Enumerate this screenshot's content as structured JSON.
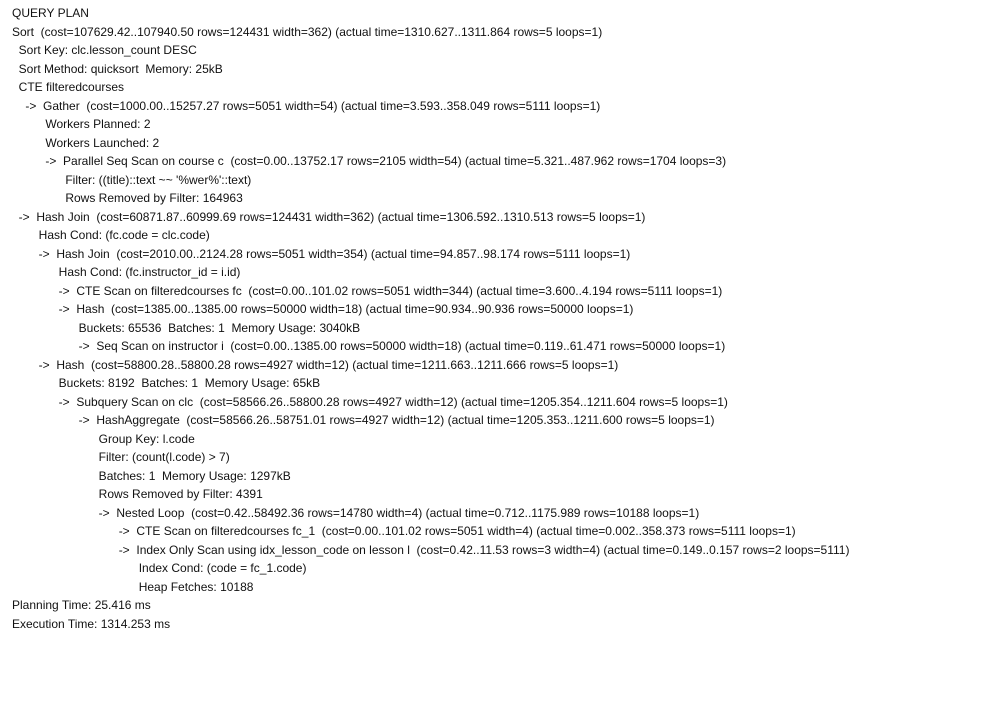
{
  "result": {
    "header": "QUERY PLAN",
    "lines": [
      "Sort  (cost=107629.42..107940.50 rows=124431 width=362) (actual time=1310.627..1311.864 rows=5 loops=1)",
      "  Sort Key: clc.lesson_count DESC",
      "  Sort Method: quicksort  Memory: 25kB",
      "  CTE filteredcourses",
      "    ->  Gather  (cost=1000.00..15257.27 rows=5051 width=54) (actual time=3.593..358.049 rows=5111 loops=1)",
      "          Workers Planned: 2",
      "          Workers Launched: 2",
      "          ->  Parallel Seq Scan on course c  (cost=0.00..13752.17 rows=2105 width=54) (actual time=5.321..487.962 rows=1704 loops=3)",
      "                Filter: ((title)::text ~~ '%wer%'::text)",
      "                Rows Removed by Filter: 164963",
      "  ->  Hash Join  (cost=60871.87..60999.69 rows=124431 width=362) (actual time=1306.592..1310.513 rows=5 loops=1)",
      "        Hash Cond: (fc.code = clc.code)",
      "        ->  Hash Join  (cost=2010.00..2124.28 rows=5051 width=354) (actual time=94.857..98.174 rows=5111 loops=1)",
      "              Hash Cond: (fc.instructor_id = i.id)",
      "              ->  CTE Scan on filteredcourses fc  (cost=0.00..101.02 rows=5051 width=344) (actual time=3.600..4.194 rows=5111 loops=1)",
      "              ->  Hash  (cost=1385.00..1385.00 rows=50000 width=18) (actual time=90.934..90.936 rows=50000 loops=1)",
      "                    Buckets: 65536  Batches: 1  Memory Usage: 3040kB",
      "                    ->  Seq Scan on instructor i  (cost=0.00..1385.00 rows=50000 width=18) (actual time=0.119..61.471 rows=50000 loops=1)",
      "        ->  Hash  (cost=58800.28..58800.28 rows=4927 width=12) (actual time=1211.663..1211.666 rows=5 loops=1)",
      "              Buckets: 8192  Batches: 1  Memory Usage: 65kB",
      "              ->  Subquery Scan on clc  (cost=58566.26..58800.28 rows=4927 width=12) (actual time=1205.354..1211.604 rows=5 loops=1)",
      "                    ->  HashAggregate  (cost=58566.26..58751.01 rows=4927 width=12) (actual time=1205.353..1211.600 rows=5 loops=1)",
      "                          Group Key: l.code",
      "                          Filter: (count(l.code) > 7)",
      "                          Batches: 1  Memory Usage: 1297kB",
      "                          Rows Removed by Filter: 4391",
      "                          ->  Nested Loop  (cost=0.42..58492.36 rows=14780 width=4) (actual time=0.712..1175.989 rows=10188 loops=1)",
      "                                ->  CTE Scan on filteredcourses fc_1  (cost=0.00..101.02 rows=5051 width=4) (actual time=0.002..358.373 rows=5111 loops=1)",
      "                                ->  Index Only Scan using idx_lesson_code on lesson l  (cost=0.42..11.53 rows=3 width=4) (actual time=0.149..0.157 rows=2 loops=5111)",
      "                                      Index Cond: (code = fc_1.code)",
      "                                      Heap Fetches: 10188",
      "Planning Time: 25.416 ms",
      "Execution Time: 1314.253 ms"
    ]
  }
}
